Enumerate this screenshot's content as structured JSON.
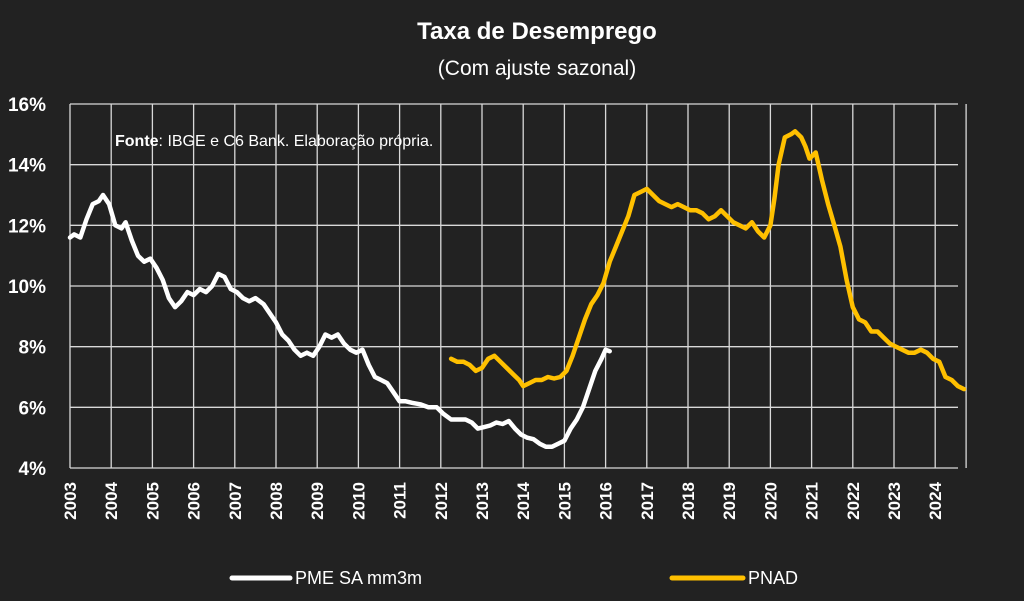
{
  "chart_data": {
    "type": "line",
    "title": "Taxa de Desemprego",
    "subtitle": "(Com ajuste sazonal)",
    "source_label": "Fonte",
    "source_text": ": IBGE e C6 Bank. Elaboração própria.",
    "ylim": [
      4,
      16
    ],
    "xlim": [
      2003,
      2024.75
    ],
    "y_ticks": [
      4,
      6,
      8,
      10,
      12,
      14,
      16
    ],
    "y_tick_labels": [
      "4%",
      "6%",
      "8%",
      "10%",
      "12%",
      "14%",
      "16%"
    ],
    "x_ticks": [
      2003,
      2004,
      2005,
      2006,
      2007,
      2008,
      2009,
      2010,
      2011,
      2012,
      2013,
      2014,
      2015,
      2016,
      2017,
      2018,
      2019,
      2020,
      2021,
      2022,
      2023,
      2024
    ],
    "x_tick_labels": [
      "2003",
      "2004",
      "2005",
      "2006",
      "2007",
      "2008",
      "2009",
      "2010",
      "2011",
      "2012",
      "2013",
      "2014",
      "2015",
      "2016",
      "2017",
      "2018",
      "2019",
      "2020",
      "2021",
      "2022",
      "2023",
      "2024"
    ],
    "grid": true,
    "legend_position": "bottom",
    "series": [
      {
        "name": "PME SA mm3m",
        "color": "#ffffff",
        "x": [
          2003.0,
          2003.1,
          2003.25,
          2003.4,
          2003.55,
          2003.7,
          2003.8,
          2003.95,
          2004.1,
          2004.25,
          2004.35,
          2004.5,
          2004.65,
          2004.8,
          2004.95,
          2005.1,
          2005.25,
          2005.4,
          2005.55,
          2005.7,
          2005.85,
          2006.0,
          2006.15,
          2006.3,
          2006.45,
          2006.6,
          2006.75,
          2006.9,
          2007.05,
          2007.2,
          2007.35,
          2007.5,
          2007.7,
          2007.85,
          2008.0,
          2008.15,
          2008.3,
          2008.45,
          2008.6,
          2008.75,
          2008.9,
          2009.05,
          2009.2,
          2009.35,
          2009.5,
          2009.65,
          2009.8,
          2009.95,
          2010.1,
          2010.25,
          2010.4,
          2010.55,
          2010.7,
          2010.85,
          2011.0,
          2011.15,
          2011.3,
          2011.5,
          2011.7,
          2011.9,
          2012.05,
          2012.25,
          2012.45,
          2012.6,
          2012.75,
          2012.9,
          2013.05,
          2013.2,
          2013.35,
          2013.5,
          2013.65,
          2013.8,
          2013.95,
          2014.1,
          2014.25,
          2014.4,
          2014.55,
          2014.7,
          2014.85,
          2015.0,
          2015.15,
          2015.3,
          2015.45,
          2015.6,
          2015.75,
          2015.9,
          2016.0,
          2016.1
        ],
        "values": [
          11.6,
          11.7,
          11.6,
          12.2,
          12.7,
          12.8,
          13.0,
          12.7,
          12.0,
          11.9,
          12.1,
          11.5,
          11.0,
          10.8,
          10.9,
          10.6,
          10.2,
          9.6,
          9.3,
          9.5,
          9.8,
          9.7,
          9.9,
          9.8,
          10.0,
          10.4,
          10.3,
          9.9,
          9.8,
          9.6,
          9.5,
          9.6,
          9.4,
          9.1,
          8.8,
          8.4,
          8.2,
          7.9,
          7.7,
          7.8,
          7.7,
          8.0,
          8.4,
          8.3,
          8.4,
          8.1,
          7.9,
          7.8,
          7.9,
          7.4,
          7.0,
          6.9,
          6.8,
          6.5,
          6.2,
          6.2,
          6.15,
          6.1,
          6.0,
          6.0,
          5.8,
          5.6,
          5.6,
          5.6,
          5.5,
          5.3,
          5.35,
          5.4,
          5.5,
          5.45,
          5.55,
          5.3,
          5.1,
          5.0,
          4.95,
          4.8,
          4.7,
          4.7,
          4.8,
          4.9,
          5.3,
          5.6,
          6.0,
          6.6,
          7.2,
          7.6,
          7.9,
          7.85
        ]
      },
      {
        "name": "PNAD",
        "color": "#ffc000",
        "x": [
          2012.25,
          2012.4,
          2012.55,
          2012.7,
          2012.85,
          2013.0,
          2013.15,
          2013.3,
          2013.45,
          2013.6,
          2013.75,
          2013.9,
          2014.0,
          2014.15,
          2014.3,
          2014.45,
          2014.6,
          2014.75,
          2014.9,
          2015.05,
          2015.2,
          2015.35,
          2015.5,
          2015.65,
          2015.8,
          2015.95,
          2016.1,
          2016.25,
          2016.4,
          2016.55,
          2016.7,
          2016.85,
          2017.0,
          2017.15,
          2017.3,
          2017.45,
          2017.6,
          2017.75,
          2017.9,
          2018.05,
          2018.2,
          2018.35,
          2018.5,
          2018.65,
          2018.8,
          2018.95,
          2019.1,
          2019.25,
          2019.4,
          2019.55,
          2019.7,
          2019.85,
          2020.0,
          2020.1,
          2020.2,
          2020.35,
          2020.5,
          2020.6,
          2020.75,
          2020.85,
          2020.95,
          2021.1,
          2021.25,
          2021.4,
          2021.55,
          2021.7,
          2021.85,
          2022.0,
          2022.15,
          2022.3,
          2022.45,
          2022.6,
          2022.75,
          2022.9,
          2023.05,
          2023.2,
          2023.35,
          2023.5,
          2023.65,
          2023.8,
          2023.95,
          2024.1,
          2024.25,
          2024.4,
          2024.55,
          2024.7
        ],
        "values": [
          7.6,
          7.5,
          7.5,
          7.4,
          7.2,
          7.3,
          7.6,
          7.7,
          7.5,
          7.3,
          7.1,
          6.9,
          6.7,
          6.8,
          6.9,
          6.9,
          7.0,
          6.95,
          7.0,
          7.2,
          7.7,
          8.3,
          8.9,
          9.4,
          9.7,
          10.1,
          10.8,
          11.3,
          11.8,
          12.3,
          13.0,
          13.1,
          13.2,
          13.0,
          12.8,
          12.7,
          12.6,
          12.7,
          12.6,
          12.5,
          12.5,
          12.4,
          12.2,
          12.3,
          12.5,
          12.3,
          12.1,
          12.0,
          11.9,
          12.1,
          11.8,
          11.6,
          12.0,
          12.9,
          14.0,
          14.9,
          15.0,
          15.1,
          14.9,
          14.6,
          14.2,
          14.4,
          13.5,
          12.7,
          12.0,
          11.3,
          10.2,
          9.3,
          8.9,
          8.8,
          8.5,
          8.5,
          8.3,
          8.1,
          8.0,
          7.9,
          7.8,
          7.8,
          7.9,
          7.8,
          7.6,
          7.5,
          7.0,
          6.9,
          6.7,
          6.6
        ]
      }
    ]
  }
}
